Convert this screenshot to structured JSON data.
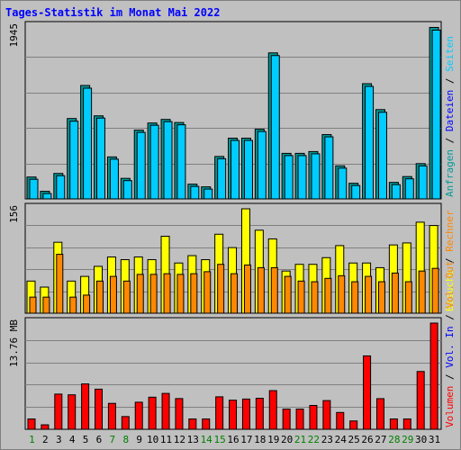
{
  "colors": {
    "background": "#c0c0c0",
    "plot_background": "#c0c0c0",
    "gridline": "#808080",
    "title": "#0000ff",
    "anfragen": "#009999",
    "dateien": "#0000ff",
    "seiten": "#00ccff",
    "besuche": "#ffff00",
    "rechner": "#ff8800",
    "vol_out": "#ff8800",
    "vol_in": "#0000ff",
    "volumen": "#ff0000",
    "weekday_label": "#000000",
    "weekend_label": "#008000"
  },
  "chart_data": {
    "title": "Tages-Statistik im Monat Mai 2022",
    "x": [
      "1",
      "2",
      "3",
      "4",
      "5",
      "6",
      "7",
      "8",
      "9",
      "10",
      "11",
      "12",
      "13",
      "14",
      "15",
      "16",
      "17",
      "18",
      "19",
      "20",
      "21",
      "22",
      "23",
      "24",
      "25",
      "26",
      "27",
      "28",
      "29",
      "30",
      "31"
    ],
    "weekend_days": [
      "1",
      "7",
      "8",
      "14",
      "15",
      "21",
      "22",
      "28",
      "29"
    ],
    "panels": [
      {
        "type": "bar",
        "ymax_label": "1945",
        "ylim": [
          0,
          1945
        ],
        "grid": true,
        "legend": [
          {
            "label": "Anfragen",
            "color_key": "anfragen"
          },
          {
            "label": "Dateien",
            "color_key": "dateien"
          },
          {
            "label": "Seiten",
            "color_key": "seiten"
          }
        ],
        "series": [
          {
            "name": "Anfragen",
            "values": [
              245,
              85,
              285,
              900,
              1270,
              930,
              470,
              230,
              770,
              850,
              890,
              855,
              165,
              135,
              475,
              680,
              680,
              780,
              1635,
              510,
              510,
              530,
              720,
              370,
              175,
              1290,
              1000,
              185,
              250,
              395,
              1920
            ]
          },
          {
            "name": "Dateien",
            "values": [
              240,
              80,
              280,
              890,
              1260,
              925,
              465,
              225,
              765,
              845,
              885,
              850,
              160,
              130,
              470,
              675,
              675,
              775,
              1625,
              505,
              505,
              525,
              715,
              365,
              170,
              1280,
              990,
              180,
              245,
              390,
              1910
            ]
          }
        ]
      },
      {
        "type": "bar",
        "ymax_label": "156",
        "ylim": [
          0,
          156
        ],
        "grid": true,
        "legend": [
          {
            "label": "Besuche",
            "color_key": "besuche"
          },
          {
            "label": "Rechner",
            "color_key": "rechner"
          }
        ],
        "series": [
          {
            "name": "Besuche",
            "values": [
              48,
              39,
              106,
              48,
              55,
              70,
              84,
              80,
              84,
              80,
              115,
              75,
              86,
              80,
              118,
              98,
              156,
              124,
              111,
              63,
              73,
              73,
              83,
              101,
              75,
              75,
              68,
              102,
              105,
              136,
              131
            ]
          },
          {
            "name": "Rechner",
            "values": [
              24,
              24,
              88,
              24,
              27,
              48,
              55,
              48,
              58,
              58,
              59,
              58,
              59,
              62,
              73,
              59,
              72,
              68,
              68,
              55,
              48,
              47,
              52,
              56,
              47,
              55,
              47,
              60,
              47,
              63,
              67
            ]
          }
        ]
      },
      {
        "type": "bar",
        "ymax_label": "13.76 MB",
        "ylim": [
          0,
          13.76
        ],
        "grid": true,
        "legend": [
          {
            "label": "Volumen",
            "color_key": "volumen"
          },
          {
            "label": "Vol. In",
            "color_key": "vol_in"
          },
          {
            "label": "Vol. Out",
            "color_key": "vol_out"
          }
        ],
        "series": [
          {
            "name": "Volumen",
            "values": [
              1.34,
              0.58,
              4.56,
              4.47,
              5.88,
              5.2,
              3.36,
              1.65,
              3.51,
              4.16,
              4.65,
              3.98,
              1.34,
              1.34,
              4.21,
              3.77,
              3.92,
              4.02,
              5.01,
              2.62,
              2.62,
              3.09,
              3.72,
              2.18,
              1.08,
              9.51,
              3.97,
              1.34,
              1.34,
              7.49,
              13.76
            ]
          }
        ]
      }
    ]
  }
}
